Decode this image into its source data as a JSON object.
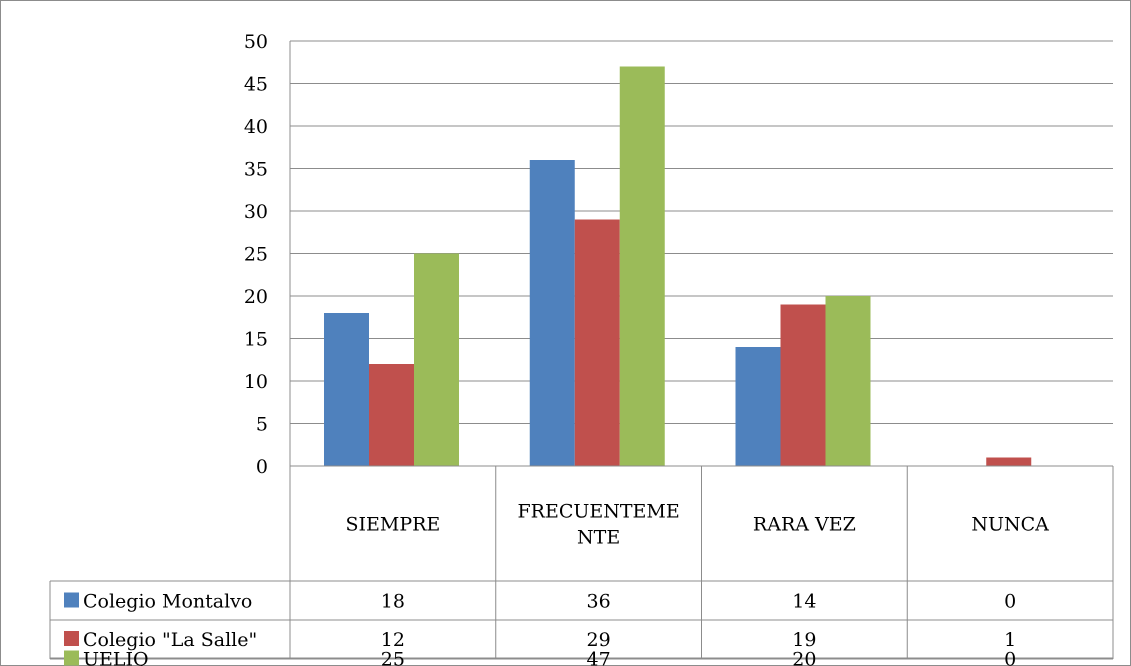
{
  "chart_data": {
    "type": "bar",
    "title": "",
    "xlabel": "",
    "ylabel": "",
    "ylim": [
      0,
      50
    ],
    "ytick_step": 5,
    "grid": true,
    "legend": "data-table",
    "categories": [
      [
        "SIEMPRE"
      ],
      [
        "FRECUENTEME",
        "NTE"
      ],
      [
        "RARA VEZ"
      ],
      [
        "NUNCA"
      ]
    ],
    "series": [
      {
        "name": "Colegio Montalvo",
        "color": "#4f81bd",
        "values": [
          18,
          36,
          14,
          0
        ]
      },
      {
        "name": "Colegio \"La Salle\"",
        "color": "#c0504d",
        "values": [
          12,
          29,
          19,
          1
        ]
      },
      {
        "name": "UELIQ",
        "color": "#9bbb59",
        "values": [
          25,
          47,
          20,
          0
        ]
      }
    ]
  }
}
